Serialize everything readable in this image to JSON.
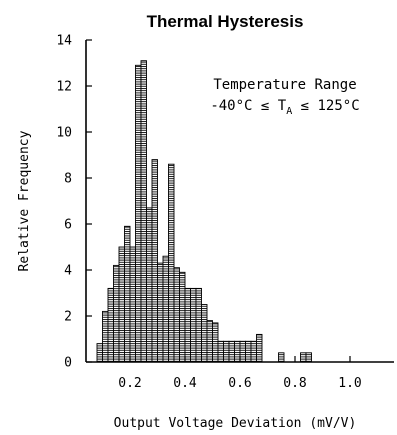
{
  "chart_data": {
    "type": "bar",
    "title": "Thermal Hysteresis",
    "xlabel": "Output Voltage Deviation (mV/V)",
    "ylabel": "Relative Frequency",
    "annotation": {
      "line1": "Temperature Range",
      "line2_prefix": "-40°C ≤ T",
      "line2_sub": "A",
      "line2_suffix": " ≤ 125°C"
    },
    "xlim": [
      0.04,
      1.16
    ],
    "ylim": [
      0,
      14
    ],
    "x_ticks": [
      {
        "value": 0.2,
        "label": "0.2"
      },
      {
        "value": 0.4,
        "label": "0.4"
      },
      {
        "value": 0.6,
        "label": "0.6"
      },
      {
        "value": 0.8,
        "label": "0.8"
      },
      {
        "value": 1.0,
        "label": "1.0"
      }
    ],
    "y_ticks": [
      {
        "value": 0,
        "label": "0"
      },
      {
        "value": 2,
        "label": "2"
      },
      {
        "value": 4,
        "label": "4"
      },
      {
        "value": 6,
        "label": "6"
      },
      {
        "value": 8,
        "label": "8"
      },
      {
        "value": 10,
        "label": "10"
      },
      {
        "value": 12,
        "label": "12"
      },
      {
        "value": 14,
        "label": "14"
      }
    ],
    "bin_width": 0.02,
    "bins": [
      {
        "x": 0.09,
        "value": 0.8
      },
      {
        "x": 0.11,
        "value": 2.2
      },
      {
        "x": 0.13,
        "value": 3.2
      },
      {
        "x": 0.15,
        "value": 4.2
      },
      {
        "x": 0.17,
        "value": 5.0
      },
      {
        "x": 0.19,
        "value": 5.9
      },
      {
        "x": 0.21,
        "value": 5.0
      },
      {
        "x": 0.23,
        "value": 12.9
      },
      {
        "x": 0.25,
        "value": 13.1
      },
      {
        "x": 0.27,
        "value": 6.7
      },
      {
        "x": 0.29,
        "value": 8.8
      },
      {
        "x": 0.31,
        "value": 4.3
      },
      {
        "x": 0.33,
        "value": 4.6
      },
      {
        "x": 0.35,
        "value": 8.6
      },
      {
        "x": 0.37,
        "value": 4.1
      },
      {
        "x": 0.39,
        "value": 3.9
      },
      {
        "x": 0.41,
        "value": 3.2
      },
      {
        "x": 0.43,
        "value": 3.2
      },
      {
        "x": 0.45,
        "value": 3.2
      },
      {
        "x": 0.47,
        "value": 2.5
      },
      {
        "x": 0.49,
        "value": 1.8
      },
      {
        "x": 0.51,
        "value": 1.7
      },
      {
        "x": 0.53,
        "value": 0.9
      },
      {
        "x": 0.55,
        "value": 0.9
      },
      {
        "x": 0.57,
        "value": 0.9
      },
      {
        "x": 0.59,
        "value": 0.9
      },
      {
        "x": 0.61,
        "value": 0.9
      },
      {
        "x": 0.63,
        "value": 0.9
      },
      {
        "x": 0.65,
        "value": 0.9
      },
      {
        "x": 0.67,
        "value": 1.2
      },
      {
        "x": 0.75,
        "value": 0.4
      },
      {
        "x": 0.83,
        "value": 0.4
      },
      {
        "x": 0.85,
        "value": 0.4
      }
    ],
    "colors": {
      "bar_fill": "#ffffff",
      "bar_line": "#000000",
      "axis": "#000000"
    },
    "grid": false,
    "legend": "none"
  }
}
